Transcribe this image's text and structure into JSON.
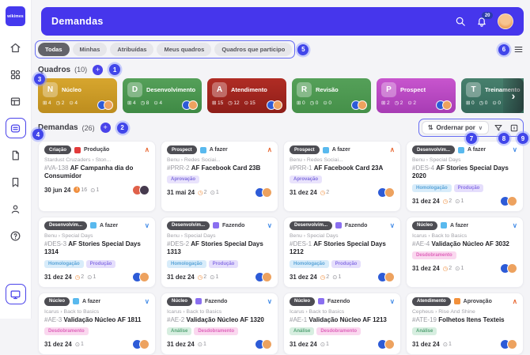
{
  "header": {
    "title": "Demandas",
    "notification_count": "20"
  },
  "sidebar": {
    "logo": "wikimes",
    "items": [
      {
        "name": "home",
        "active": false
      },
      {
        "name": "apps",
        "active": false
      },
      {
        "name": "table",
        "active": false
      },
      {
        "name": "boards",
        "active": true
      },
      {
        "name": "notes",
        "active": false
      },
      {
        "name": "bookmark",
        "active": false
      },
      {
        "name": "profile",
        "active": false
      },
      {
        "name": "help",
        "active": false
      }
    ],
    "bottom_item": {
      "name": "monitor"
    }
  },
  "filter_tabs": [
    {
      "label": "Todas",
      "active": true
    },
    {
      "label": "Minhas",
      "active": false
    },
    {
      "label": "Atribuídas",
      "active": false
    },
    {
      "label": "Meus quadros",
      "active": false
    },
    {
      "label": "Quadros que participo",
      "active": false
    }
  ],
  "boards_section": {
    "label": "Quadros",
    "count": "(10)"
  },
  "boards": [
    {
      "initial": "N",
      "name": "Núcleo",
      "color_top": "#d7a62e",
      "color_bottom": "#bd8d1e",
      "stats": [
        "4",
        "2",
        "4"
      ],
      "avatars": [
        "#2d5bd7",
        "#eda25f"
      ]
    },
    {
      "initial": "D",
      "name": "Desenvolvimento",
      "color_top": "#55a059",
      "color_bottom": "#3f8a45",
      "stats": [
        "4",
        "8",
        "4"
      ],
      "avatars": [
        "#2d5bd7",
        "#eda25f"
      ]
    },
    {
      "initial": "A",
      "name": "Atendimento",
      "color_top": "#b02c24",
      "color_bottom": "#8e1e19",
      "stats": [
        "15",
        "12",
        "15"
      ],
      "avatars": [
        "#2d5bd7",
        "#eda25f"
      ]
    },
    {
      "initial": "R",
      "name": "Revisão",
      "color_top": "#55a059",
      "color_bottom": "#459049",
      "stats": [
        "0",
        "0",
        "0"
      ],
      "avatars": [
        "#2d5bd7",
        "#eda25f"
      ]
    },
    {
      "initial": "P",
      "name": "Prospect",
      "color_top": "#c855ce",
      "color_bottom": "#a73cb4",
      "stats": [
        "2",
        "2",
        "2"
      ],
      "avatars": [
        "#2d5bd7",
        "#eda25f"
      ]
    },
    {
      "initial": "T",
      "name": "Treinamento",
      "color_top": "#47806d",
      "color_bottom": "#35695b",
      "stats": [
        "0",
        "0",
        "0"
      ],
      "avatars": []
    }
  ],
  "demands_section": {
    "label": "Demandas",
    "count": "(26)",
    "sort_label": "Ordernar por"
  },
  "status_palette": {
    "A fazer": "#59b9ee",
    "Fazendo": "#8a6ff0",
    "Produção": "#e23b3b",
    "Aprovação": "#f2903b"
  },
  "tag_palette": {
    "Aprovação": {
      "bg": "#e9e3fc",
      "fg": "#7e6cdd"
    },
    "Homologação": {
      "bg": "#d8ecfa",
      "fg": "#5aa4d8"
    },
    "Produção": {
      "bg": "#e5defc",
      "fg": "#8a74e6"
    },
    "Desdobramento": {
      "bg": "#fad8ef",
      "fg": "#df64bb"
    },
    "Análise": {
      "bg": "#d7eee0",
      "fg": "#57a578"
    }
  },
  "cards": [
    {
      "board": "Criação",
      "status": "Produção",
      "chevron": "up",
      "breadcrumb": "Stardust Cruzaders › Ston...",
      "id": "#VA-138",
      "title": "AF Campanha dia do Consumidor",
      "tags": [],
      "date": "30 jun 24",
      "meta": [
        {
          "icon": "alert",
          "value": "16"
        },
        {
          "icon": "gray",
          "value": "1"
        }
      ],
      "avatars": [
        "#e0614a",
        "#463a4e"
      ]
    },
    {
      "board": "Prospect",
      "status": "A fazer",
      "chevron": "up",
      "breadcrumb": "Benu › Redes Sociai...",
      "id": "#PRR-2",
      "title": "AF Facebook Card 23B",
      "tags": [
        "Aprovação"
      ],
      "date": "31 mai 24",
      "meta": [
        {
          "icon": "orange",
          "value": "2"
        },
        {
          "icon": "gray",
          "value": "1"
        }
      ],
      "avatars": [
        "#2d5bd7",
        "#eda25f"
      ]
    },
    {
      "board": "Prospect",
      "status": "A fazer",
      "chevron": "up",
      "breadcrumb": "Benu › Redes Sociai...",
      "id": "#PRR-1",
      "title": "AF Facebook Card 23A",
      "tags": [
        "Aprovação"
      ],
      "date": "31 dez 24",
      "meta": [
        {
          "icon": "orange",
          "value": "2"
        }
      ],
      "avatars": [
        "#2d5bd7",
        "#eda25f"
      ]
    },
    {
      "board": "Desenvolvim...",
      "status": "A fazer",
      "chevron": "down",
      "breadcrumb": "Benu › Special Days",
      "id": "#DES-4",
      "title": "AF Stories Special Days 2020",
      "tags": [
        "Homologação",
        "Produção"
      ],
      "date": "31 dez 24",
      "meta": [
        {
          "icon": "orange",
          "value": "2"
        },
        {
          "icon": "gray",
          "value": "1"
        }
      ],
      "avatars": [
        "#2d5bd7",
        "#eda25f"
      ]
    },
    {
      "board": "Desenvolvim...",
      "status": "A fazer",
      "chevron": "down",
      "breadcrumb": "Benu › Special Days",
      "id": "#DES-3",
      "title": "AF Stories Special Days 1314",
      "tags": [
        "Homologação",
        "Produção"
      ],
      "date": "31 dez 24",
      "meta": [
        {
          "icon": "orange",
          "value": "2"
        },
        {
          "icon": "gray",
          "value": "1"
        }
      ],
      "avatars": [
        "#2d5bd7",
        "#eda25f"
      ]
    },
    {
      "board": "Desenvolvim...",
      "status": "Fazendo",
      "chevron": "down",
      "breadcrumb": "Benu › Special Days",
      "id": "#DES-2",
      "title": "AF Stories Special Days 1313",
      "tags": [
        "Homologação",
        "Produção"
      ],
      "date": "31 dez 24",
      "meta": [
        {
          "icon": "orange",
          "value": "2"
        },
        {
          "icon": "gray",
          "value": "1"
        }
      ],
      "avatars": [
        "#2d5bd7",
        "#eda25f"
      ]
    },
    {
      "board": "Desenvolvim...",
      "status": "Fazendo",
      "chevron": "down",
      "breadcrumb": "Benu › Special Days",
      "id": "#DES-1",
      "title": "AF Stories Special Days 1212",
      "tags": [
        "Homologação",
        "Produção"
      ],
      "date": "31 dez 24",
      "meta": [
        {
          "icon": "orange",
          "value": "2"
        },
        {
          "icon": "gray",
          "value": "1"
        }
      ],
      "avatars": [
        "#2d5bd7",
        "#eda25f"
      ]
    },
    {
      "board": "Núcleo",
      "status": "A fazer",
      "chevron": "down",
      "breadcrumb": "Icarus › Back to Basics",
      "id": "#AE-4",
      "title": "Validação Núcleo AF 3032",
      "tags": [
        "Desdobramento"
      ],
      "date": "31 dez 24",
      "meta": [
        {
          "icon": "orange",
          "value": "2"
        },
        {
          "icon": "gray",
          "value": "1"
        }
      ],
      "avatars": [
        "#2d5bd7",
        "#eda25f"
      ]
    },
    {
      "board": "Núcleo",
      "status": "A fazer",
      "chevron": "down",
      "breadcrumb": "Icarus › Back to Basics",
      "id": "#AE-3",
      "title": "Validação Núcleo AF 1811",
      "tags": [
        "Desdobramento"
      ],
      "date": "31 dez 24",
      "meta": [
        {
          "icon": "gray",
          "value": "1"
        }
      ],
      "avatars": [
        "#2d5bd7",
        "#eda25f"
      ]
    },
    {
      "board": "Núcleo",
      "status": "Fazendo",
      "chevron": "down",
      "breadcrumb": "Icarus › Back to Basics",
      "id": "#AE-2",
      "title": "Validação Núcleo AF 1320",
      "tags": [
        "Análise",
        "Desdobramento"
      ],
      "date": "31 dez 24",
      "meta": [
        {
          "icon": "gray",
          "value": "1"
        }
      ],
      "avatars": [
        "#2d5bd7",
        "#eda25f"
      ]
    },
    {
      "board": "Núcleo",
      "status": "Fazendo",
      "chevron": "down",
      "breadcrumb": "Icarus › Back to Basics",
      "id": "#AE-1",
      "title": "Validação Núcleo AF 1213",
      "tags": [
        "Análise",
        "Desdobramento"
      ],
      "date": "31 dez 24",
      "meta": [
        {
          "icon": "gray",
          "value": "1"
        }
      ],
      "avatars": [
        "#2d5bd7",
        "#eda25f"
      ]
    },
    {
      "board": "Atendimento",
      "status": "Aprovação",
      "chevron": "up",
      "breadcrumb": "Cepheus › Rise And Shine",
      "id": "#ATE-19",
      "title": "Folhetos Itens Texteis",
      "tags": [
        "Análise"
      ],
      "date": "31 dez 24",
      "meta": [
        {
          "icon": "gray",
          "value": "1"
        }
      ],
      "avatars": [
        "#2d5bd7",
        "#eda25f"
      ]
    }
  ],
  "annotations": [
    "1",
    "2",
    "3",
    "4",
    "5",
    "6",
    "7",
    "8",
    "9"
  ]
}
